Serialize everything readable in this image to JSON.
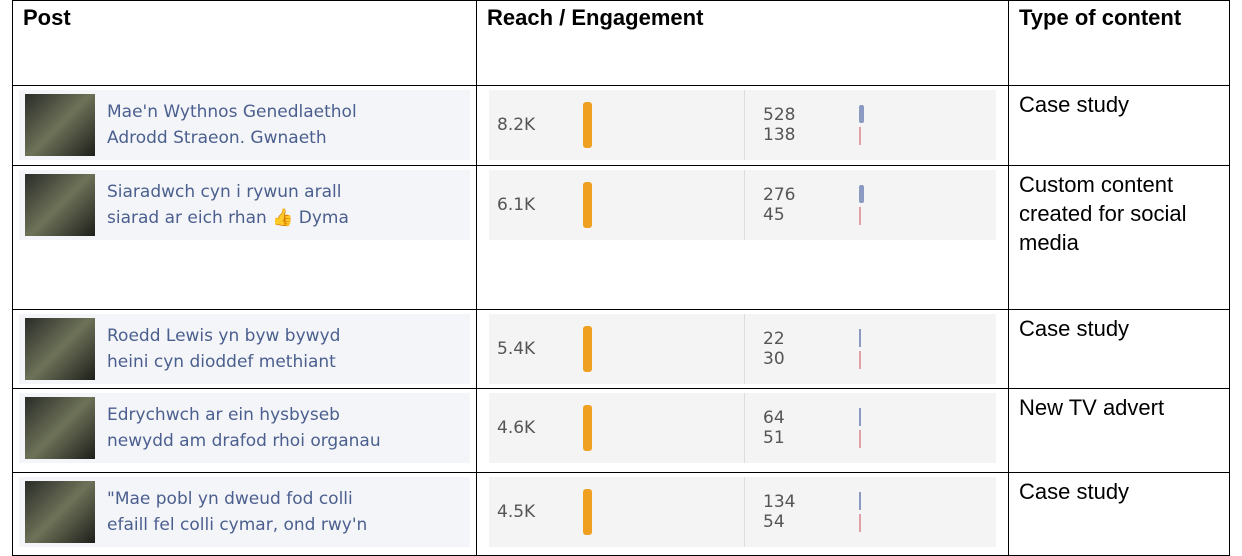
{
  "header": {
    "post": "Post",
    "reach": "Reach / Engagement",
    "type": "Type of content"
  },
  "rows": [
    {
      "post": [
        "Mae'n Wythnos Genedlaethol",
        "Adrodd Straeon. Gwnaeth"
      ],
      "reach": "8.2K",
      "engagement": [
        528,
        138
      ],
      "type": "Case study"
    },
    {
      "post": [
        "Siaradwch cyn i rywun arall",
        "siarad ar eich rhan 👍 Dyma"
      ],
      "reach": "6.1K",
      "engagement": [
        276,
        45
      ],
      "type": "Custom content created for social media"
    },
    {
      "post": [
        "Roedd Lewis yn byw bywyd",
        "heini cyn dioddef methiant"
      ],
      "reach": "5.4K",
      "engagement": [
        22,
        30
      ],
      "type": "Case study"
    },
    {
      "post": [
        "Edrychwch ar ein hysbyseb",
        "newydd am drafod rhoi organau"
      ],
      "reach": "4.6K",
      "engagement": [
        64,
        51
      ],
      "type": "New TV advert"
    },
    {
      "post": [
        "\"Mae pobl yn dweud fod colli",
        "efaill fel colli cymar, ond rwy'n"
      ],
      "reach": "4.5K",
      "engagement": [
        134,
        54
      ],
      "type": "Case study"
    }
  ]
}
